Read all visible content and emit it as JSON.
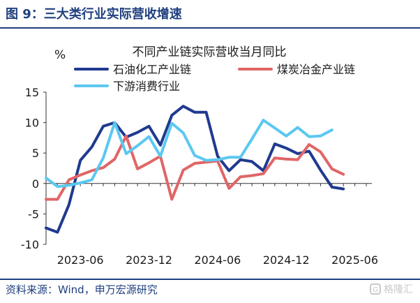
{
  "figure": {
    "title": "图 9：三大类行业实际营收增速",
    "source": "资料来源：Wind，申万宏源研究",
    "watermark": "格隆汇"
  },
  "chart_data": {
    "type": "line",
    "title": "不同产业链实际营收当月同比",
    "ylabel": "%",
    "xlabel": "",
    "ylim": [
      -10,
      15
    ],
    "yticks": [
      -10,
      -5,
      0,
      5,
      10,
      15
    ],
    "grid": false,
    "legend_position": "top",
    "x": [
      "2023-03",
      "2023-04",
      "2023-05",
      "2023-06",
      "2023-07",
      "2023-08",
      "2023-09",
      "2023-10",
      "2023-11",
      "2023-12",
      "2024-01",
      "2024-02",
      "2024-03",
      "2024-04",
      "2024-05",
      "2024-06",
      "2024-07",
      "2024-08",
      "2024-09",
      "2024-10",
      "2024-11",
      "2024-12",
      "2025-01",
      "2025-02",
      "2025-03",
      "2025-04",
      "2025-05",
      "2025-06",
      "2025-07"
    ],
    "xtick_labels": [
      "2023-06",
      "2023-12",
      "2024-06",
      "2024-12",
      "2025-06"
    ],
    "series": [
      {
        "name": "石油化工产业链",
        "color": "#1f3a8f",
        "values": [
          -7.3,
          -8.0,
          -3.5,
          3.8,
          6.0,
          9.4,
          10.0,
          7.6,
          8.4,
          9.4,
          6.3,
          11.2,
          12.7,
          11.7,
          11.7,
          4.5,
          2.1,
          3.9,
          3.6,
          2.1,
          6.5,
          5.8,
          4.9,
          5.3,
          2.2,
          -0.6,
          -0.9,
          null,
          null
        ]
      },
      {
        "name": "煤炭冶金产业链",
        "color": "#e06666",
        "values": [
          -2.6,
          -2.6,
          0.6,
          1.4,
          2.1,
          2.6,
          4.0,
          7.8,
          2.4,
          3.4,
          4.5,
          -2.6,
          2.2,
          3.3,
          3.5,
          3.7,
          -0.8,
          1.1,
          1.3,
          1.6,
          4.2,
          4.0,
          3.9,
          6.4,
          5.2,
          2.4,
          1.5,
          null,
          null
        ]
      },
      {
        "name": "下游消费行业",
        "color": "#5bc8f0",
        "values": [
          0.9,
          -0.5,
          -0.3,
          0.1,
          0.6,
          4.2,
          10.0,
          4.9,
          6.2,
          7.7,
          4.5,
          9.9,
          8.3,
          4.6,
          3.8,
          3.9,
          4.3,
          4.3,
          7.3,
          10.4,
          9.1,
          7.8,
          9.2,
          7.7,
          7.8,
          8.8,
          null,
          null,
          null
        ]
      }
    ]
  }
}
